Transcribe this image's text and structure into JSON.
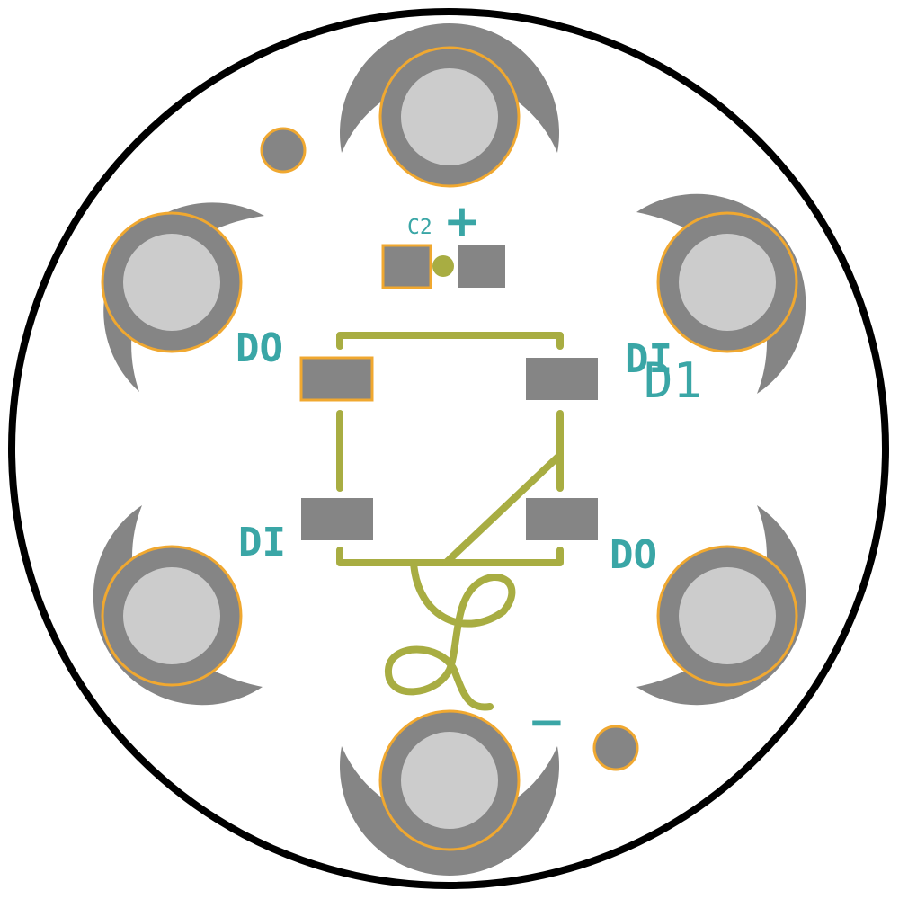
{
  "colors": {
    "background": "#ffffff",
    "board_outline": "#000000",
    "copper": "#858585",
    "hole": "#cccccc",
    "pad_highlight": "#f0a830",
    "silkscreen": "#a8ad42",
    "label": "#3aa6a6"
  },
  "labels": {
    "cap_ref": "C2",
    "plus": "+",
    "minus": "−",
    "do_top_left": "DO",
    "di_top_right": "DI",
    "led_ref": "D1",
    "di_bottom_left": "DI",
    "do_bottom_right": "DO"
  },
  "components": {
    "connectors": [
      "top",
      "upper-right",
      "lower-right",
      "bottom",
      "lower-left",
      "upper-left"
    ],
    "led_pads": [
      "top-left",
      "top-right",
      "bottom-left",
      "bottom-right"
    ],
    "cap_pads": [
      "left",
      "right"
    ],
    "vias": [
      "top-left",
      "bottom-right"
    ]
  }
}
